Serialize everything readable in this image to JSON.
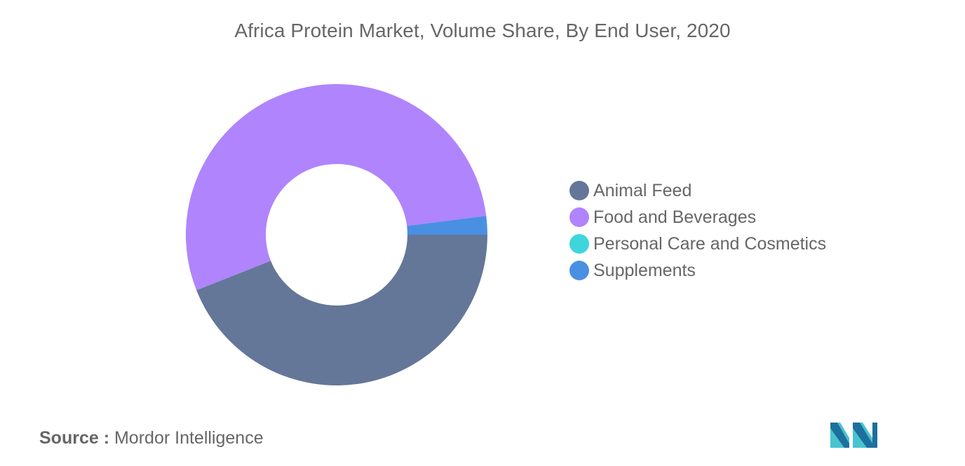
{
  "chart_data": {
    "type": "pie",
    "subtype": "donut",
    "title": "Africa Protein Market, Volume Share, By End User, 2020",
    "categories": [
      "Animal Feed",
      "Food and Beverages",
      "Personal Care and Cosmetics",
      "Supplements"
    ],
    "values": [
      44.0,
      54.0,
      0.0,
      2.0
    ],
    "colors": [
      "#657798",
      "#b084fd",
      "#3fd6db",
      "#4a90e2"
    ],
    "legend_position": "right"
  },
  "source": {
    "label": "Source :",
    "text": "Mordor Intelligence"
  },
  "logo": {
    "icon": "mordor-intelligence-logo-icon",
    "colors": [
      "#1d6f9e",
      "#49c4cf"
    ]
  }
}
